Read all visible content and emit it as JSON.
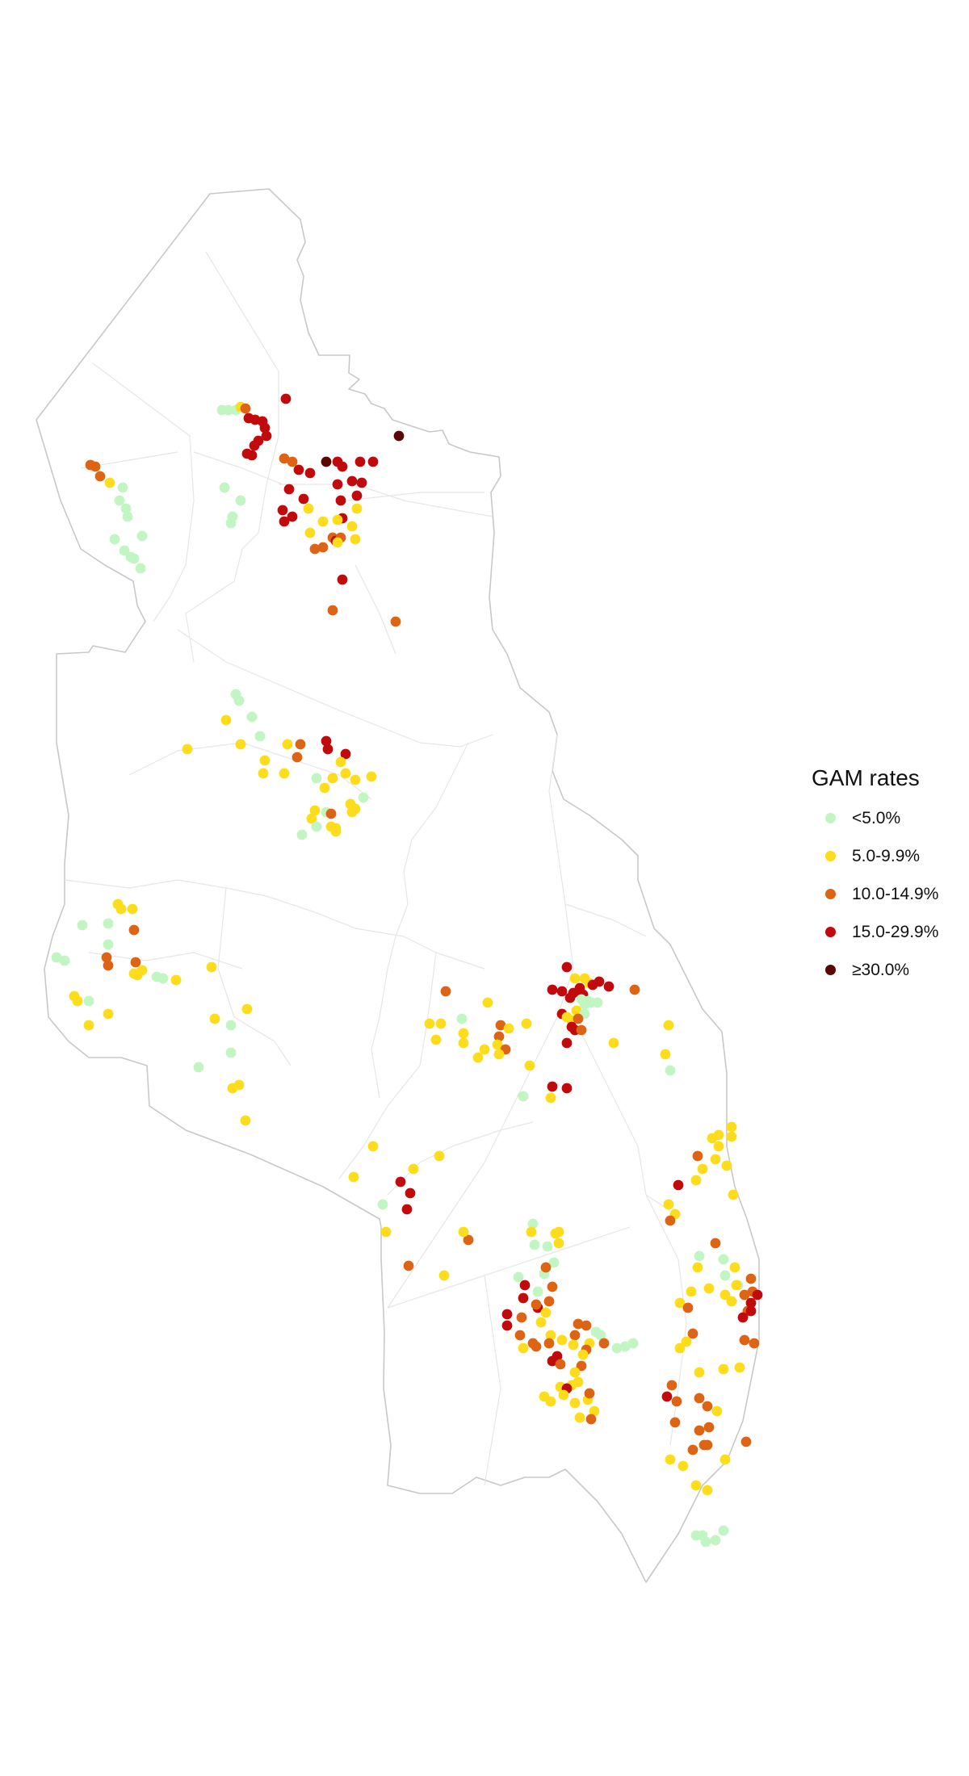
{
  "legend": {
    "title": "GAM rates",
    "items": [
      {
        "label": "<5.0%",
        "color": "#c1f5c2"
      },
      {
        "label": "5.0-9.9%",
        "color": "#fcdc1b"
      },
      {
        "label": "10.0-14.9%",
        "color": "#dd6414"
      },
      {
        "label": "15.0-29.9%",
        "color": "#c10a0c"
      },
      {
        "label": "≥30.0%",
        "color": "#5a0803"
      }
    ]
  }
}
